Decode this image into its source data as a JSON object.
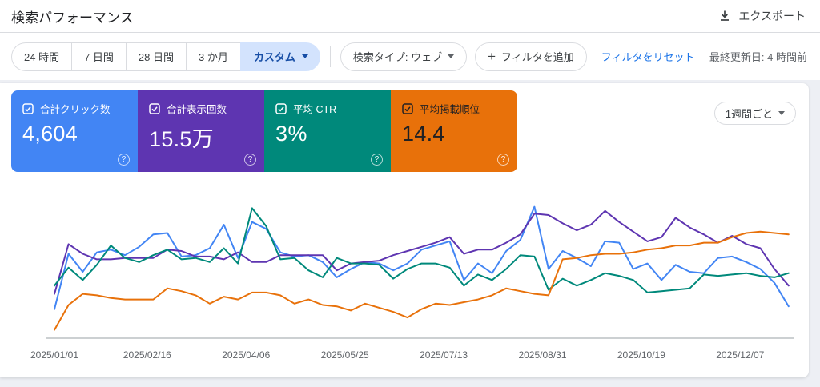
{
  "header": {
    "title": "検索パフォーマンス",
    "export_label": "エクスポート"
  },
  "filters": {
    "date_tabs": [
      {
        "label": "24 時間"
      },
      {
        "label": "7 日間"
      },
      {
        "label": "28 日間"
      },
      {
        "label": "3 か月"
      }
    ],
    "custom_tab_label": "カスタム",
    "search_type_label": "検索タイプ: ウェブ",
    "add_filter_label": "フィルタを追加",
    "reset_filters_label": "フィルタをリセット",
    "last_updated": "最終更新日: 4 時間前"
  },
  "icons": {
    "plus": "+",
    "help": "?"
  },
  "metrics": [
    {
      "label": "合計クリック数",
      "value": "4,604",
      "color": "#4285f4",
      "text_color": "#ffffff",
      "checked": true
    },
    {
      "label": "合計表示回数",
      "value": "15.5万",
      "color": "#5e35b1",
      "text_color": "#ffffff",
      "checked": true
    },
    {
      "label": "平均 CTR",
      "value": "3%",
      "color": "#00897b",
      "text_color": "#ffffff",
      "checked": true
    },
    {
      "label": "平均掲載順位",
      "value": "14.4",
      "color": "#e8710a",
      "text_color": "#202124",
      "checked": true
    }
  ],
  "granularity": {
    "selected": "1週間ごと"
  },
  "chart_data": {
    "type": "line",
    "x_start": "2025/01/01",
    "x_step_days": 7,
    "n_points": 53,
    "grid": false,
    "legend_position": "none",
    "y_axis": "hidden",
    "value_scale": "normalized 0-100 = fraction of plot height (no y-axis labels shown)",
    "ticks": [
      {
        "label": "2025/01/01",
        "week": 0
      },
      {
        "label": "2025/02/16",
        "week": 6.57
      },
      {
        "label": "2025/04/06",
        "week": 13.57
      },
      {
        "label": "2025/05/25",
        "week": 20.57
      },
      {
        "label": "2025/07/13",
        "week": 27.57
      },
      {
        "label": "2025/08/31",
        "week": 34.57
      },
      {
        "label": "2025/10/19",
        "week": 41.57
      },
      {
        "label": "2025/12/07",
        "week": 48.57
      }
    ],
    "series": [
      {
        "key": "clicks",
        "name": "合計クリック数",
        "total": "4,604",
        "color": "#4285f4",
        "points": [
          21,
          61,
          48,
          62,
          64,
          60,
          66,
          75,
          76,
          59,
          60,
          65,
          82,
          58,
          84,
          79,
          62,
          59,
          60,
          55,
          44,
          50,
          55,
          54,
          49,
          54,
          64,
          67,
          70,
          42,
          54,
          47,
          63,
          71,
          95,
          50,
          63,
          58,
          52,
          70,
          69,
          50,
          54,
          42,
          53,
          48,
          47,
          58,
          59,
          55,
          50,
          40,
          23
        ]
      },
      {
        "key": "impressions",
        "name": "合計表示回数",
        "total": "15.5万",
        "color": "#5e35b1",
        "points": [
          32,
          68,
          61,
          57,
          57,
          58,
          58,
          58,
          64,
          63,
          59,
          59,
          57,
          62,
          55,
          55,
          60,
          60,
          60,
          60,
          49,
          54,
          55,
          56,
          60,
          63,
          66,
          69,
          73,
          61,
          64,
          64,
          69,
          75,
          90,
          89,
          83,
          78,
          82,
          92,
          84,
          77,
          70,
          73,
          87,
          80,
          75,
          69,
          74,
          68,
          65,
          50,
          38
        ]
      },
      {
        "key": "ctr",
        "name": "平均 CTR",
        "total": "3%",
        "color": "#00897b",
        "points": [
          38,
          51,
          42,
          53,
          67,
          58,
          55,
          60,
          64,
          57,
          58,
          55,
          65,
          54,
          94,
          81,
          57,
          58,
          49,
          44,
          58,
          54,
          54,
          53,
          43,
          50,
          54,
          54,
          51,
          38,
          46,
          42,
          50,
          60,
          59,
          35,
          43,
          38,
          42,
          47,
          45,
          42,
          33,
          34,
          35,
          36,
          46,
          45,
          46,
          47,
          45,
          44,
          47
        ]
      },
      {
        "key": "position",
        "name": "平均掲載順位",
        "total": "14.4",
        "color": "#e8710a",
        "points": [
          6,
          24,
          32,
          31,
          29,
          28,
          28,
          28,
          36,
          34,
          31,
          25,
          30,
          28,
          33,
          33,
          31,
          25,
          28,
          24,
          23,
          20,
          25,
          22,
          19,
          15,
          21,
          25,
          24,
          26,
          28,
          31,
          36,
          34,
          32,
          31,
          57,
          58,
          60,
          61,
          61,
          62,
          64,
          65,
          67,
          67,
          69,
          69,
          73,
          76,
          77,
          76,
          75
        ]
      }
    ]
  }
}
